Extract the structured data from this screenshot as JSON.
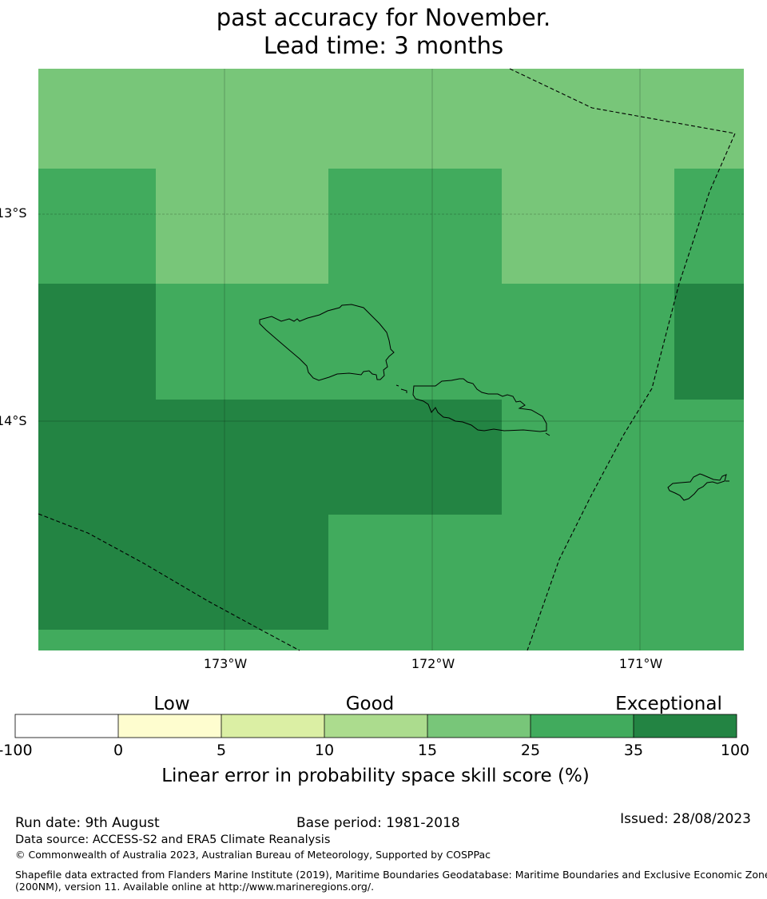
{
  "title_lines": [
    "past accuracy for November.",
    "Lead time: 3 months"
  ],
  "map": {
    "lat_labels": [
      "13°S",
      "14°S"
    ],
    "lon_labels": [
      "173°W",
      "172°W",
      "171°W"
    ],
    "grid": {
      "cell_values_skill_band": [
        [
          "15-25",
          "15-25",
          "15-25",
          "15-25",
          "15-25",
          "15-25",
          "15-25",
          "15-25",
          "15-25",
          "15-25",
          "15-25",
          "15-25",
          "15-25",
          "15-25",
          "15-25",
          "15-25",
          "15-25",
          "15-25",
          "15-25",
          "15-25",
          "15-25",
          "15-25",
          "15-25",
          "15-25",
          "15-25",
          "15-25",
          "15-25",
          "15-25",
          "15-25",
          "15-25",
          "15-25",
          "15-25",
          "15-25",
          "15-25",
          "15-25",
          "15-25",
          "15-25",
          "15-25",
          "15-25",
          "15-25",
          "15-25",
          "15-25",
          "15-25",
          "15-25",
          "15-25",
          "15-25",
          "15-25",
          "15-25",
          "15-25",
          "15-25",
          "15-25",
          "15-25",
          "15-25",
          "15-25",
          "15-25",
          "15-25",
          "15-25",
          "15-25",
          "15-25",
          "15-25",
          "15-25"
        ]
      ],
      "rows": [
        [
          "25-35",
          "15-25",
          "15-25",
          "25-35",
          "25-35",
          "15-25",
          "15-25",
          "25-35"
        ],
        [
          "35-100",
          "25-35",
          "25-35",
          "25-35",
          "25-35",
          "25-35",
          "25-35",
          "35-100"
        ],
        [
          "35-100",
          "35-100",
          "35-100",
          "35-100",
          "35-100",
          "25-35",
          "25-35",
          "25-35"
        ],
        [
          "35-100",
          "35-100",
          "35-100",
          "25-35",
          "25-35",
          "25-35",
          "25-35",
          "25-35"
        ]
      ]
    }
  },
  "colorbar": {
    "categories": [
      "Low",
      "Good",
      "Exceptional"
    ],
    "ticks": [
      "-100",
      "0",
      "5",
      "10",
      "15",
      "25",
      "35",
      "100"
    ],
    "colors": [
      "#ffffff",
      "#fefdcf",
      "#dbefa4",
      "#acdc8e",
      "#78c679",
      "#41ab5d",
      "#238443"
    ],
    "title": "Linear error in probability space skill score (%)"
  },
  "footer": {
    "run_date": "Run date: 9th August",
    "base_period": "Base period: 1981-2018",
    "issued": "Issued: 28/08/2023",
    "data_source": "Data source: ACCESS-S2 and ERA5 Climate Reanalysis",
    "copyright": "© Commonwealth of Australia 2023, Australian Bureau of Meteorology, Supported by COSPPac",
    "shapefile_line1": "Shapefile data extracted from Flanders Marine Institute (2019), Maritime Boundaries Geodatabase: Maritime Boundaries and Exclusive Economic Zones",
    "shapefile_line2": "(200NM), version 11. Available online at http://www.marineregions.org/."
  }
}
